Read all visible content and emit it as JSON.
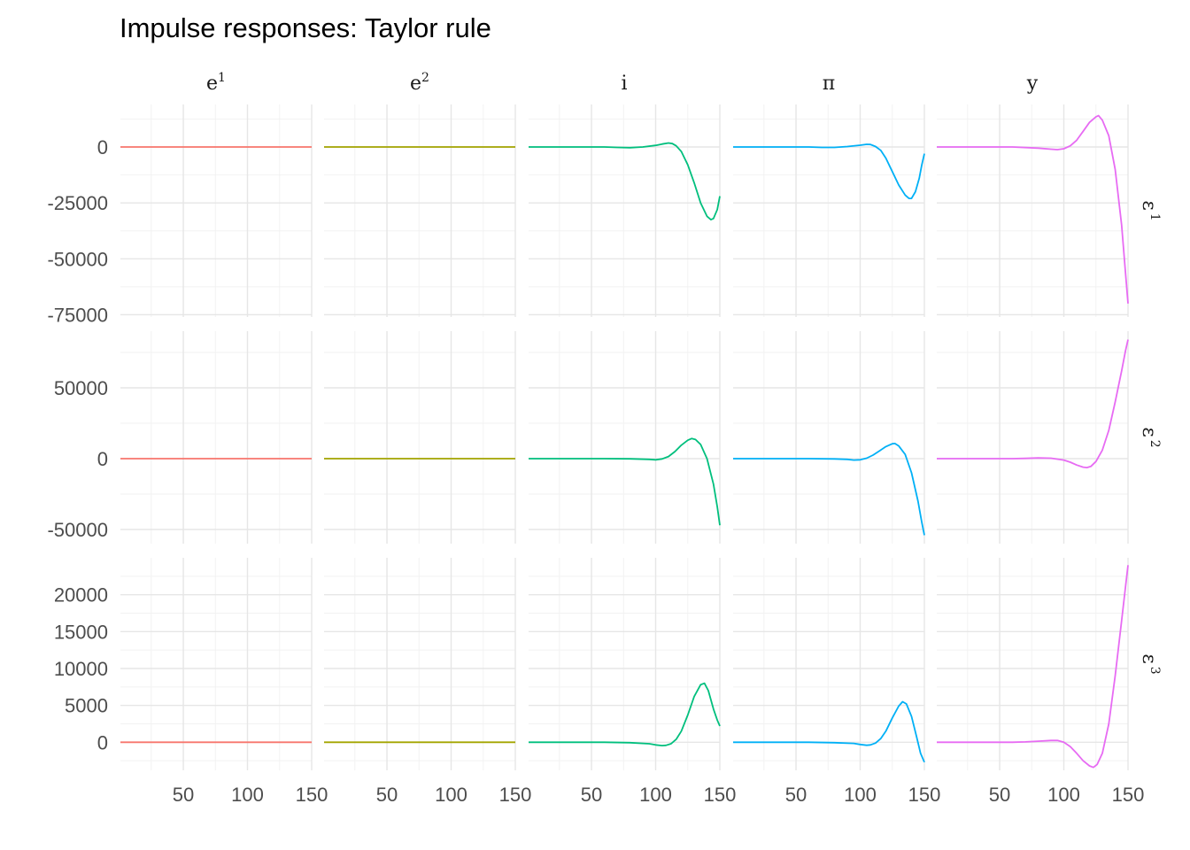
{
  "title": "Impulse responses: Taylor rule",
  "chart_data": {
    "type": "line",
    "title": "Impulse responses: Taylor rule",
    "facet_layout": "grid 3 rows x 5 columns, free y scales per row",
    "xlim": [
      1,
      150
    ],
    "x_ticks": [
      50,
      100,
      150
    ],
    "x_tick_labels": [
      "50",
      "100",
      "150"
    ],
    "grid": true,
    "legend": "none",
    "columns": [
      {
        "id": "e1",
        "base": "e",
        "sup": "1",
        "color": "#F8766D"
      },
      {
        "id": "e2",
        "base": "e",
        "sup": "2",
        "color": "#A3A500"
      },
      {
        "id": "i",
        "base": "i",
        "sup": "",
        "color": "#00BF7D"
      },
      {
        "id": "pi",
        "base": "π",
        "sup": "",
        "color": "#00B0F6"
      },
      {
        "id": "y",
        "base": "y",
        "sup": "",
        "color": "#E76BF3"
      }
    ],
    "rows": [
      {
        "id": "eps1",
        "base": "ε",
        "sup": "1",
        "ylim": [
          -76000,
          19000
        ],
        "y_ticks": [
          -75000,
          -50000,
          -25000,
          0
        ],
        "y_tick_labels": [
          "-75000",
          "-50000",
          "-25000",
          "0"
        ],
        "y_minor_ticks": [
          -62500,
          -37500,
          -12500,
          12500
        ],
        "series": {
          "e1": [
            [
              1,
              0
            ],
            [
              150,
              0
            ]
          ],
          "e2": [
            [
              1,
              0
            ],
            [
              150,
              0
            ]
          ],
          "i": [
            [
              1,
              0
            ],
            [
              60,
              0
            ],
            [
              70,
              -200
            ],
            [
              80,
              -300
            ],
            [
              90,
              0
            ],
            [
              100,
              700
            ],
            [
              105,
              1300
            ],
            [
              110,
              1800
            ],
            [
              113,
              1500
            ],
            [
              116,
              500
            ],
            [
              120,
              -2000
            ],
            [
              125,
              -8000
            ],
            [
              130,
              -16000
            ],
            [
              135,
              -25000
            ],
            [
              140,
              -31000
            ],
            [
              143,
              -32500
            ],
            [
              145,
              -32000
            ],
            [
              148,
              -28000
            ],
            [
              150,
              -22000
            ]
          ],
          "pi": [
            [
              1,
              0
            ],
            [
              60,
              0
            ],
            [
              70,
              -200
            ],
            [
              80,
              -200
            ],
            [
              90,
              200
            ],
            [
              100,
              800
            ],
            [
              105,
              1200
            ],
            [
              108,
              1100
            ],
            [
              112,
              200
            ],
            [
              116,
              -1500
            ],
            [
              120,
              -5000
            ],
            [
              125,
              -11000
            ],
            [
              130,
              -17000
            ],
            [
              135,
              -21500
            ],
            [
              138,
              -23000
            ],
            [
              140,
              -23000
            ],
            [
              143,
              -20000
            ],
            [
              146,
              -14000
            ],
            [
              148,
              -8000
            ],
            [
              150,
              -3000
            ]
          ],
          "y": [
            [
              1,
              0
            ],
            [
              60,
              0
            ],
            [
              80,
              -500
            ],
            [
              90,
              -1000
            ],
            [
              95,
              -1200
            ],
            [
              100,
              -800
            ],
            [
              105,
              500
            ],
            [
              110,
              3000
            ],
            [
              115,
              7000
            ],
            [
              120,
              11000
            ],
            [
              125,
              13500
            ],
            [
              127,
              14000
            ],
            [
              130,
              12000
            ],
            [
              135,
              5000
            ],
            [
              140,
              -10000
            ],
            [
              145,
              -35000
            ],
            [
              148,
              -56000
            ],
            [
              150,
              -70000
            ]
          ]
        }
      },
      {
        "id": "eps2",
        "base": "ε",
        "sup": "2",
        "ylim": [
          -60000,
          90000
        ],
        "y_ticks": [
          -50000,
          0,
          50000
        ],
        "y_tick_labels": [
          "-50000",
          "0",
          "50000"
        ],
        "y_minor_ticks": [
          -25000,
          25000,
          75000
        ],
        "series": {
          "e1": [
            [
              1,
              0
            ],
            [
              150,
              0
            ]
          ],
          "e2": [
            [
              1,
              0
            ],
            [
              150,
              0
            ]
          ],
          "i": [
            [
              1,
              0
            ],
            [
              60,
              0
            ],
            [
              80,
              -100
            ],
            [
              95,
              -500
            ],
            [
              100,
              -800
            ],
            [
              105,
              -200
            ],
            [
              110,
              1500
            ],
            [
              115,
              5000
            ],
            [
              120,
              9500
            ],
            [
              125,
              13000
            ],
            [
              128,
              14200
            ],
            [
              131,
              13500
            ],
            [
              135,
              10000
            ],
            [
              140,
              0
            ],
            [
              145,
              -18000
            ],
            [
              148,
              -34000
            ],
            [
              150,
              -47000
            ]
          ],
          "pi": [
            [
              1,
              0
            ],
            [
              60,
              0
            ],
            [
              80,
              -200
            ],
            [
              90,
              -500
            ],
            [
              95,
              -1000
            ],
            [
              100,
              -800
            ],
            [
              105,
              300
            ],
            [
              110,
              2500
            ],
            [
              115,
              5500
            ],
            [
              120,
              8500
            ],
            [
              125,
              10500
            ],
            [
              127,
              10700
            ],
            [
              130,
              9000
            ],
            [
              135,
              3000
            ],
            [
              140,
              -10000
            ],
            [
              145,
              -30000
            ],
            [
              148,
              -45000
            ],
            [
              150,
              -54000
            ]
          ],
          "y": [
            [
              1,
              0
            ],
            [
              60,
              0
            ],
            [
              70,
              200
            ],
            [
              80,
              500
            ],
            [
              90,
              300
            ],
            [
              100,
              -1000
            ],
            [
              105,
              -2500
            ],
            [
              110,
              -4500
            ],
            [
              115,
              -6000
            ],
            [
              118,
              -6300
            ],
            [
              121,
              -5500
            ],
            [
              125,
              -2000
            ],
            [
              130,
              6000
            ],
            [
              135,
              20000
            ],
            [
              140,
              40000
            ],
            [
              145,
              62000
            ],
            [
              148,
              76000
            ],
            [
              150,
              84000
            ]
          ]
        }
      },
      {
        "id": "eps3",
        "base": "ε",
        "sup": "3",
        "ylim": [
          -3800,
          25000
        ],
        "y_ticks": [
          0,
          5000,
          10000,
          15000,
          20000
        ],
        "y_tick_labels": [
          "0",
          "5000",
          "10000",
          "15000",
          "20000"
        ],
        "y_minor_ticks": [
          -2500,
          2500,
          7500,
          12500,
          17500,
          22500
        ],
        "series": {
          "e1": [
            [
              1,
              0
            ],
            [
              150,
              0
            ]
          ],
          "e2": [
            [
              1,
              0
            ],
            [
              150,
              0
            ]
          ],
          "i": [
            [
              1,
              0
            ],
            [
              60,
              0
            ],
            [
              80,
              -50
            ],
            [
              95,
              -200
            ],
            [
              100,
              -350
            ],
            [
              105,
              -450
            ],
            [
              108,
              -420
            ],
            [
              112,
              -200
            ],
            [
              116,
              400
            ],
            [
              120,
              1500
            ],
            [
              125,
              3700
            ],
            [
              130,
              6200
            ],
            [
              135,
              7800
            ],
            [
              138,
              8000
            ],
            [
              141,
              7000
            ],
            [
              145,
              4500
            ],
            [
              148,
              3000
            ],
            [
              150,
              2200
            ]
          ],
          "pi": [
            [
              1,
              0
            ],
            [
              60,
              0
            ],
            [
              80,
              -50
            ],
            [
              95,
              -150
            ],
            [
              100,
              -300
            ],
            [
              105,
              -400
            ],
            [
              108,
              -350
            ],
            [
              112,
              -100
            ],
            [
              116,
              500
            ],
            [
              120,
              1500
            ],
            [
              125,
              3300
            ],
            [
              130,
              4900
            ],
            [
              133,
              5500
            ],
            [
              136,
              5200
            ],
            [
              140,
              3500
            ],
            [
              144,
              700
            ],
            [
              147,
              -1500
            ],
            [
              150,
              -2700
            ]
          ],
          "y": [
            [
              1,
              0
            ],
            [
              60,
              0
            ],
            [
              70,
              50
            ],
            [
              80,
              150
            ],
            [
              90,
              250
            ],
            [
              95,
              250
            ],
            [
              100,
              0
            ],
            [
              105,
              -600
            ],
            [
              110,
              -1500
            ],
            [
              115,
              -2500
            ],
            [
              120,
              -3200
            ],
            [
              123,
              -3400
            ],
            [
              126,
              -3000
            ],
            [
              130,
              -1500
            ],
            [
              135,
              2500
            ],
            [
              140,
              9000
            ],
            [
              145,
              16500
            ],
            [
              148,
              21000
            ],
            [
              150,
              24000
            ]
          ]
        }
      }
    ]
  }
}
